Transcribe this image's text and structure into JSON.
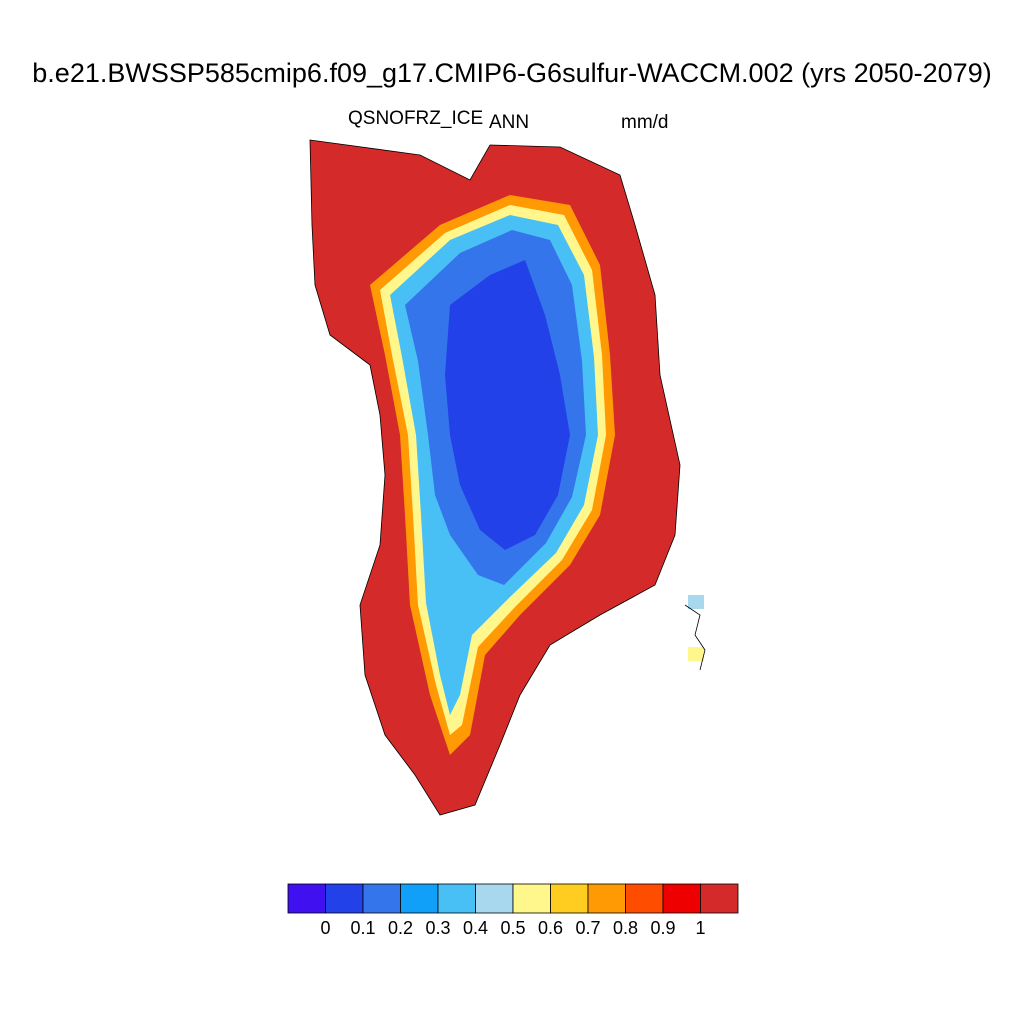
{
  "title": "b.e21.BWSSP585cmip6.f09_g17.CMIP6-G6sulfur-WACCM.002 (yrs 2050-2079)",
  "subtitle_left": "QSNOFRZ_ICE",
  "subtitle_center": "ANN",
  "subtitle_right": "mm/d",
  "colorbar": {
    "colors": [
      "#4010f0",
      "#2241e8",
      "#3575eb",
      "#10a0fa",
      "#48c0f5",
      "#a8d8ee",
      "#fff78c",
      "#ffcd20",
      "#ff9a05",
      "#ff4d00",
      "#ee0000",
      "#d52a2a"
    ],
    "labels": [
      "0",
      "0.1",
      "0.2",
      "0.3",
      "0.4",
      "0.5",
      "0.6",
      "0.7",
      "0.8",
      "0.9",
      "1"
    ]
  }
}
